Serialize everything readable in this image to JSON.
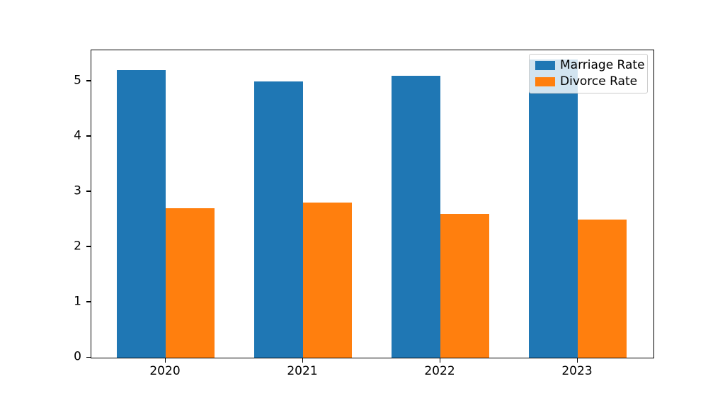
{
  "chart_data": {
    "type": "bar",
    "title": "",
    "categories": [
      "2020",
      "2021",
      "2022",
      "2023"
    ],
    "series": [
      {
        "name": "Marriage Rate",
        "color": "#1f77b4",
        "values": [
          5.2,
          5.0,
          5.1,
          5.4
        ]
      },
      {
        "name": "Divorce Rate",
        "color": "#ff7f0e",
        "values": [
          2.7,
          2.8,
          2.6,
          2.5
        ]
      }
    ],
    "xlabel": "",
    "ylabel": "",
    "ylim": [
      0,
      5.56
    ],
    "yticks": [
      0,
      1,
      2,
      3,
      4,
      5
    ],
    "grid": false,
    "legend": {
      "position": "upper right",
      "entries": [
        "Marriage Rate",
        "Divorce Rate"
      ]
    }
  },
  "colors": {
    "axis": "#000000",
    "background": "#ffffff",
    "legend_border": "#cccccc",
    "series_blue": "#1f77b4",
    "series_orange": "#ff7f0e"
  }
}
